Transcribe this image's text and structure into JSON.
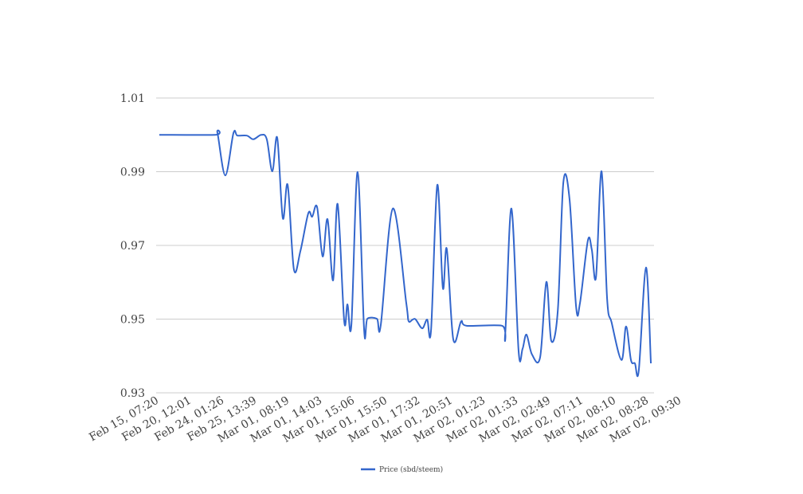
{
  "chart_data": {
    "type": "line",
    "title": "",
    "xlabel": "",
    "ylabel": "",
    "ylim": [
      0.93,
      1.01
    ],
    "yticks": [
      "0.93",
      "0.95",
      "0.97",
      "0.99",
      "1.01"
    ],
    "ytick_values": [
      0.93,
      0.95,
      0.97,
      0.99,
      1.01
    ],
    "grid": true,
    "legend_position": "bottom",
    "categories": [
      "Feb 15, 07:20",
      "Feb 20, 12:01",
      "Feb 24, 01:26",
      "Feb 25, 13:39",
      "Mar 01, 08:19",
      "Mar 01, 14:03",
      "Mar 01, 15:06",
      "Mar 01, 15:50",
      "Mar 01, 17:32",
      "Mar 01, 20:51",
      "Mar 02, 01:23",
      "Mar 02, 01:33",
      "Mar 02, 02:49",
      "Mar 02, 07:11",
      "Mar 02, 08:10",
      "Mar 02, 08:28",
      "Mar 02, 09:30"
    ],
    "series": [
      {
        "name": "Price (sbd/steem)",
        "color": "#3366cc",
        "points": [
          [
            0,
            1.0
          ],
          [
            1.71,
            1.0
          ],
          [
            1.78,
            1.0005
          ],
          [
            2.02,
            0.989
          ],
          [
            2.27,
            1.0005
          ],
          [
            2.39,
            0.9998
          ],
          [
            2.68,
            0.9998
          ],
          [
            2.88,
            0.9988
          ],
          [
            3.12,
            1.0
          ],
          [
            3.29,
            0.9988
          ],
          [
            3.46,
            0.9901
          ],
          [
            3.61,
            0.9992
          ],
          [
            3.78,
            0.9774
          ],
          [
            3.93,
            0.9864
          ],
          [
            4.12,
            0.9635
          ],
          [
            4.32,
            0.9685
          ],
          [
            4.56,
            0.9787
          ],
          [
            4.68,
            0.9778
          ],
          [
            4.83,
            0.9804
          ],
          [
            5.0,
            0.967
          ],
          [
            5.15,
            0.9771
          ],
          [
            5.32,
            0.9605
          ],
          [
            5.46,
            0.9812
          ],
          [
            5.66,
            0.9495
          ],
          [
            5.76,
            0.954
          ],
          [
            5.88,
            0.9484
          ],
          [
            6.07,
            0.9899
          ],
          [
            6.27,
            0.9471
          ],
          [
            6.37,
            0.9501
          ],
          [
            6.66,
            0.9501
          ],
          [
            6.78,
            0.9484
          ],
          [
            7.15,
            0.98
          ],
          [
            7.56,
            0.9544
          ],
          [
            7.63,
            0.9495
          ],
          [
            7.76,
            0.9499
          ],
          [
            7.85,
            0.9499
          ],
          [
            8.05,
            0.9475
          ],
          [
            8.2,
            0.9499
          ],
          [
            8.32,
            0.9471
          ],
          [
            8.51,
            0.9864
          ],
          [
            8.68,
            0.9585
          ],
          [
            8.8,
            0.9691
          ],
          [
            9.0,
            0.9445
          ],
          [
            9.24,
            0.9494
          ],
          [
            9.41,
            0.9482
          ],
          [
            10.49,
            0.9482
          ],
          [
            10.59,
            0.946
          ],
          [
            10.78,
            0.98
          ],
          [
            11.0,
            0.9413
          ],
          [
            11.12,
            0.9419
          ],
          [
            11.24,
            0.9458
          ],
          [
            11.41,
            0.9404
          ],
          [
            11.66,
            0.9397
          ],
          [
            11.85,
            0.9601
          ],
          [
            12.0,
            0.9441
          ],
          [
            12.2,
            0.9523
          ],
          [
            12.37,
            0.9871
          ],
          [
            12.56,
            0.9825
          ],
          [
            12.76,
            0.9534
          ],
          [
            12.88,
            0.9544
          ],
          [
            13.12,
            0.9713
          ],
          [
            13.24,
            0.9689
          ],
          [
            13.37,
            0.9614
          ],
          [
            13.54,
            0.9901
          ],
          [
            13.71,
            0.9555
          ],
          [
            13.85,
            0.949
          ],
          [
            14.15,
            0.9389
          ],
          [
            14.29,
            0.948
          ],
          [
            14.44,
            0.9389
          ],
          [
            14.56,
            0.938
          ],
          [
            14.68,
            0.9361
          ],
          [
            14.9,
            0.964
          ],
          [
            15.05,
            0.938
          ]
        ]
      }
    ]
  }
}
